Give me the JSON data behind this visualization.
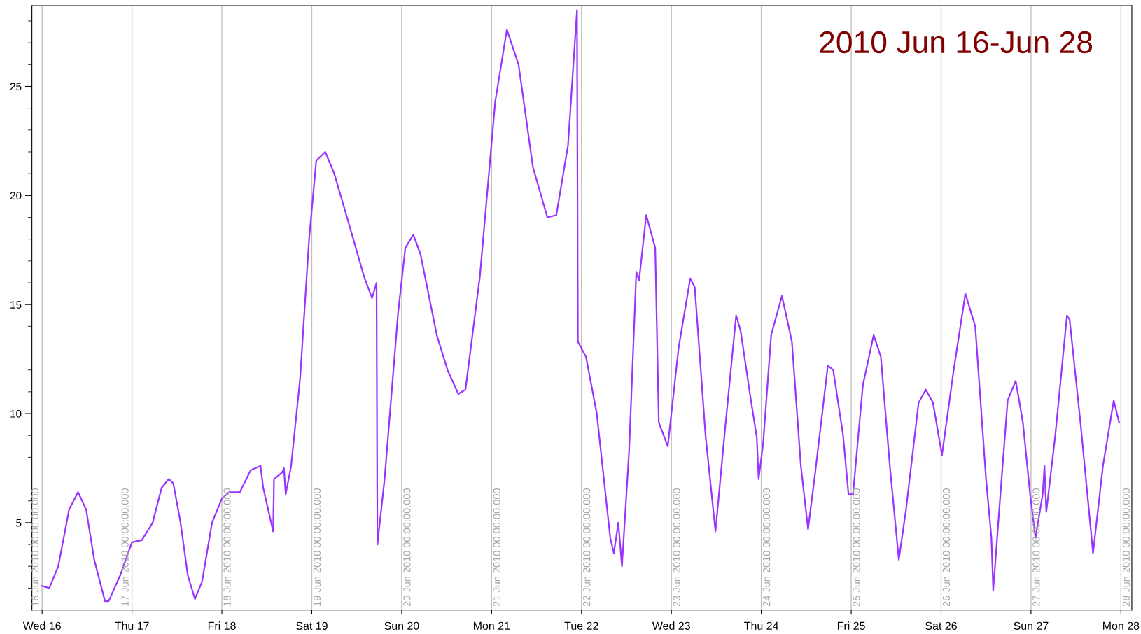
{
  "chart_data": {
    "type": "line",
    "title": "2010 Jun 16-Jun 28",
    "x": [
      "2010-06-16T00:00",
      "2010-06-16T01:55",
      "2010-06-16T04:19",
      "2010-06-16T07:12",
      "2010-06-16T09:36",
      "2010-06-16T11:46",
      "2010-06-16T13:55",
      "2010-06-16T16:48",
      "2010-06-16T17:46",
      "2010-06-16T20:53",
      "2010-06-17T00:00",
      "2010-06-17T02:38",
      "2010-06-17T05:31",
      "2010-06-17T07:55",
      "2010-06-17T09:50",
      "2010-06-17T11:02",
      "2010-06-17T12:58",
      "2010-06-17T14:53",
      "2010-06-17T16:48",
      "2010-06-17T18:43",
      "2010-06-17T21:22",
      "2010-06-18T00:00",
      "2010-06-18T01:55",
      "2010-06-18T04:48",
      "2010-06-18T07:41",
      "2010-06-18T10:19",
      "2010-06-18T11:02",
      "2010-06-18T13:41",
      "2010-06-18T13:55",
      "2010-06-18T16:05",
      "2010-06-18T16:34",
      "2010-06-18T17:02",
      "2010-06-18T18:29",
      "2010-06-18T20:53",
      "2010-06-18T23:17",
      "2010-06-19T01:12",
      "2010-06-19T03:36",
      "2010-06-19T06:00",
      "2010-06-19T10:05",
      "2010-06-19T13:55",
      "2010-06-19T16:05",
      "2010-06-19T17:17",
      "2010-06-19T17:31",
      "2010-06-19T19:26",
      "2010-06-19T23:02",
      "2010-06-20T00:58",
      "2010-06-20T03:07",
      "2010-06-20T05:02",
      "2010-06-20T09:22",
      "2010-06-20T12:14",
      "2010-06-20T15:07",
      "2010-06-20T17:02",
      "2010-06-20T20:53",
      "2010-06-21T00:58",
      "2010-06-21T04:05",
      "2010-06-21T07:12",
      "2010-06-21T11:02",
      "2010-06-21T14:53",
      "2010-06-21T17:17",
      "2010-06-21T20:24",
      "2010-06-21T22:48",
      "2010-06-21T23:02",
      "2010-06-22T01:12",
      "2010-06-22T04:05",
      "2010-06-22T07:41",
      "2010-06-22T08:38",
      "2010-06-22T09:50",
      "2010-06-22T10:48",
      "2010-06-22T12:43",
      "2010-06-22T14:38",
      "2010-06-22T15:22",
      "2010-06-22T17:17",
      "2010-06-22T19:41",
      "2010-06-22T20:38",
      "2010-06-22T23:02",
      "2010-06-23T01:55",
      "2010-06-23T05:02",
      "2010-06-23T06:14",
      "2010-06-23T09:07",
      "2010-06-23T11:46",
      "2010-06-23T14:10",
      "2010-06-23T17:17",
      "2010-06-23T18:29",
      "2010-06-23T20:53",
      "2010-06-23T22:48",
      "2010-06-23T23:17",
      "2010-06-24T00:29",
      "2010-06-24T02:38",
      "2010-06-24T05:31",
      "2010-06-24T08:10",
      "2010-06-24T10:34",
      "2010-06-24T12:29",
      "2010-06-24T14:24",
      "2010-06-24T17:46",
      "2010-06-24T19:12",
      "2010-06-24T21:50",
      "2010-06-24T23:17",
      "2010-06-25T00:29",
      "2010-06-25T03:07",
      "2010-06-25T06:00",
      "2010-06-25T07:55",
      "2010-06-25T10:19",
      "2010-06-25T12:43",
      "2010-06-25T14:38",
      "2010-06-25T18:00",
      "2010-06-25T19:55",
      "2010-06-25T21:50",
      "2010-06-26T00:14",
      "2010-06-26T03:22",
      "2010-06-26T06:29",
      "2010-06-26T09:07",
      "2010-06-26T12:00",
      "2010-06-26T13:26",
      "2010-06-26T13:55",
      "2010-06-26T15:50",
      "2010-06-26T17:46",
      "2010-06-26T19:55",
      "2010-06-26T21:50",
      "2010-06-26T23:46",
      "2010-06-27T01:12",
      "2010-06-27T03:07",
      "2010-06-27T03:36",
      "2010-06-27T04:05",
      "2010-06-27T06:29",
      "2010-06-27T09:36",
      "2010-06-27T10:19",
      "2010-06-27T13:12",
      "2010-06-27T16:34",
      "2010-06-27T19:12",
      "2010-06-27T22:05",
      "2010-06-27T23:31"
    ],
    "series": [
      {
        "color": "#9933ff",
        "values": [
          2.1,
          2.0,
          3.0,
          5.6,
          6.4,
          5.6,
          3.3,
          1.4,
          1.4,
          2.6,
          4.1,
          4.2,
          5.0,
          6.6,
          7.0,
          6.8,
          5.0,
          2.6,
          1.5,
          2.3,
          5.0,
          6.1,
          6.4,
          6.4,
          7.4,
          7.6,
          6.6,
          4.6,
          7.0,
          7.3,
          7.5,
          6.3,
          7.6,
          11.6,
          18.0,
          21.6,
          22.0,
          21.0,
          18.6,
          16.3,
          15.3,
          16.0,
          4.0,
          7.0,
          14.6,
          17.6,
          18.2,
          17.3,
          13.6,
          12.0,
          10.9,
          11.1,
          16.3,
          24.3,
          27.6,
          26.0,
          21.3,
          19.0,
          19.1,
          22.3,
          28.5,
          13.3,
          12.6,
          10.0,
          4.3,
          3.6,
          5.0,
          3.0,
          8.3,
          16.5,
          16.1,
          19.1,
          17.6,
          9.6,
          8.5,
          13.0,
          16.2,
          15.8,
          9.0,
          4.6,
          9.0,
          14.5,
          13.8,
          11.0,
          8.9,
          7.0,
          8.6,
          13.6,
          15.4,
          13.3,
          7.6,
          4.7,
          7.3,
          12.2,
          12.0,
          9.0,
          6.3,
          6.3,
          11.3,
          13.6,
          12.6,
          7.6,
          3.3,
          5.6,
          10.5,
          11.1,
          10.5,
          8.1,
          12.0,
          15.5,
          14.0,
          7.0,
          4.3,
          1.9,
          6.3,
          10.6,
          11.5,
          9.6,
          6.3,
          4.3,
          6.3,
          7.6,
          5.5,
          9.0,
          14.5,
          14.3,
          9.6,
          3.6,
          7.6,
          10.6,
          9.6
        ]
      }
    ],
    "xlim": [
      "2010-06-15T21:17",
      "2010-06-28T02:55"
    ],
    "xticks": [
      {
        "value": "2010-06-16",
        "label": "Wed 16"
      },
      {
        "value": "2010-06-17",
        "label": "Thu 17"
      },
      {
        "value": "2010-06-18",
        "label": "Fri 18"
      },
      {
        "value": "2010-06-19",
        "label": "Sat 19"
      },
      {
        "value": "2010-06-20",
        "label": "Sun 20"
      },
      {
        "value": "2010-06-21",
        "label": "Mon 21"
      },
      {
        "value": "2010-06-22",
        "label": "Tue 22"
      },
      {
        "value": "2010-06-23",
        "label": "Wed 23"
      },
      {
        "value": "2010-06-24",
        "label": "Thu 24"
      },
      {
        "value": "2010-06-25",
        "label": "Fri 25"
      },
      {
        "value": "2010-06-26",
        "label": "Sat 26"
      },
      {
        "value": "2010-06-27",
        "label": "Sun 27"
      },
      {
        "value": "2010-06-28",
        "label": "Mon 28"
      }
    ],
    "ylim": [
      1,
      28.7
    ],
    "yticks": [
      5,
      10,
      15,
      20,
      25
    ],
    "ref_lines": [
      {
        "axis": "x",
        "value": "2010-06-16",
        "label": "16 Jun 2010 00:00:00.000",
        "color": "#c0c0c0"
      },
      {
        "axis": "x",
        "value": "2010-06-17",
        "label": "17 Jun 2010 00:00:00.000",
        "color": "#c0c0c0"
      },
      {
        "axis": "x",
        "value": "2010-06-18",
        "label": "18 Jun 2010 00:00:00.000",
        "color": "#c0c0c0"
      },
      {
        "axis": "x",
        "value": "2010-06-19",
        "label": "19 Jun 2010 00:00:00.000",
        "color": "#c0c0c0"
      },
      {
        "axis": "x",
        "value": "2010-06-20",
        "label": "20 Jun 2010 00:00:00.000",
        "color": "#c0c0c0"
      },
      {
        "axis": "x",
        "value": "2010-06-21",
        "label": "21 Jun 2010 00:00:00.000",
        "color": "#c0c0c0"
      },
      {
        "axis": "x",
        "value": "2010-06-22",
        "label": "22 Jun 2010 00:00:00.000",
        "color": "#c0c0c0"
      },
      {
        "axis": "x",
        "value": "2010-06-23",
        "label": "23 Jun 2010 00:00:00.000",
        "color": "#c0c0c0"
      },
      {
        "axis": "x",
        "value": "2010-06-24",
        "label": "24 Jun 2010 00:00:00.000",
        "color": "#c0c0c0"
      },
      {
        "axis": "x",
        "value": "2010-06-25",
        "label": "25 Jun 2010 00:00:00.000",
        "color": "#c0c0c0"
      },
      {
        "axis": "x",
        "value": "2010-06-26",
        "label": "26 Jun 2010 00:00:00.000",
        "color": "#c0c0c0"
      },
      {
        "axis": "x",
        "value": "2010-06-27",
        "label": "27 Jun 2010 00:00:00.000",
        "color": "#c0c0c0"
      },
      {
        "axis": "x",
        "value": "2010-06-28",
        "label": "28 Jun 2010 00:00:00.000",
        "color": "#c0c0c0"
      }
    ],
    "grid": false,
    "marker": "none",
    "line_style": "solid"
  }
}
